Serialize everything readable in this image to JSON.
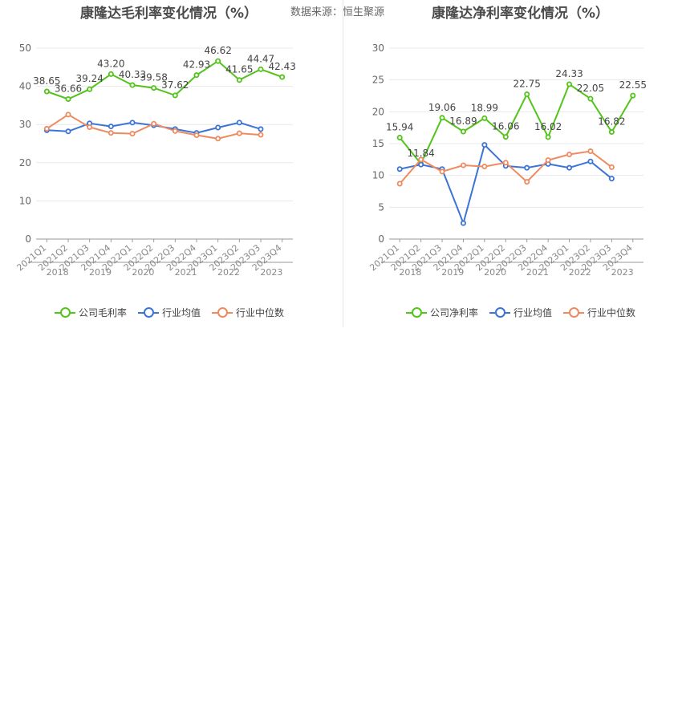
{
  "source_label": "数据来源：恒生聚源",
  "charts": [
    {
      "title": "康隆达毛利率变化情况（%）",
      "legend": [
        "公司毛利率",
        "行业均值",
        "行业中位数"
      ]
    },
    {
      "title": "康隆达净利率变化情况（%）",
      "legend": [
        "公司净利率",
        "行业均值",
        "行业中位数"
      ]
    }
  ],
  "colors": {
    "company": "#52c41a",
    "industry_avg": "#3c74d6",
    "industry_median": "#ef8a5f",
    "grid": "#e8e8e8",
    "axis": "#999999",
    "label": "#444444"
  },
  "chart_data": [
    {
      "type": "line",
      "title": "康隆达毛利率变化情况（%）",
      "categories": [
        "2021Q1",
        "2021Q2",
        "2021Q3",
        "2021Q4",
        "2022Q1",
        "2022Q2",
        "2022Q3",
        "2022Q4",
        "2023Q1",
        "2023Q2",
        "2023Q3",
        "2023Q4"
      ],
      "year_labels": [
        "2018",
        "2019",
        "2020",
        "2021",
        "2022",
        "2023"
      ],
      "ylim": [
        0,
        50
      ],
      "yticks": [
        0,
        10,
        20,
        30,
        40,
        50
      ],
      "series": [
        {
          "name": "公司毛利率",
          "values": [
            38.65,
            36.66,
            39.24,
            43.2,
            40.33,
            39.58,
            37.62,
            42.93,
            46.62,
            41.65,
            44.47,
            42.43
          ]
        },
        {
          "name": "行业均值",
          "values": [
            28.5,
            28.2,
            30.3,
            29.5,
            30.5,
            29.8,
            28.8,
            27.8,
            29.2,
            30.5,
            28.8,
            null
          ]
        },
        {
          "name": "行业中位数",
          "values": [
            28.9,
            32.6,
            29.3,
            27.8,
            27.6,
            30.2,
            28.3,
            27.2,
            26.3,
            27.7,
            27.3,
            null
          ]
        }
      ],
      "data_labels": [
        "38.65",
        "36.66",
        "39.24",
        "43.20",
        "40.33",
        "39.58",
        "37.62",
        "42.93",
        "46.62",
        "41.65",
        "44.47",
        "42.43"
      ]
    },
    {
      "type": "line",
      "title": "康隆达净利率变化情况（%）",
      "categories": [
        "2021Q1",
        "2021Q2",
        "2021Q3",
        "2021Q4",
        "2022Q1",
        "2022Q2",
        "2022Q3",
        "2022Q4",
        "2023Q1",
        "2023Q2",
        "2023Q3",
        "2023Q4"
      ],
      "year_labels": [
        "2018",
        "2019",
        "2020",
        "2021",
        "2022",
        "2023"
      ],
      "ylim": [
        0,
        30
      ],
      "yticks": [
        0,
        5,
        10,
        15,
        20,
        25,
        30
      ],
      "series": [
        {
          "name": "公司净利率",
          "values": [
            15.94,
            11.84,
            19.06,
            16.89,
            18.99,
            16.06,
            22.75,
            16.02,
            24.33,
            22.05,
            16.82,
            22.55
          ]
        },
        {
          "name": "行业均值",
          "values": [
            11.0,
            11.7,
            11.0,
            2.5,
            14.8,
            11.5,
            11.2,
            11.8,
            11.2,
            12.2,
            9.5,
            null
          ]
        },
        {
          "name": "行业中位数",
          "values": [
            8.7,
            12.5,
            10.6,
            11.6,
            11.4,
            12.0,
            9.0,
            12.4,
            13.3,
            13.8,
            11.3,
            null
          ]
        }
      ],
      "data_labels": [
        "15.94",
        "11.84",
        "19.06",
        "16.89",
        "18.99",
        "16.06",
        "22.75",
        "16.02",
        "24.33",
        "22.05",
        "16.82",
        "22.55"
      ]
    }
  ]
}
